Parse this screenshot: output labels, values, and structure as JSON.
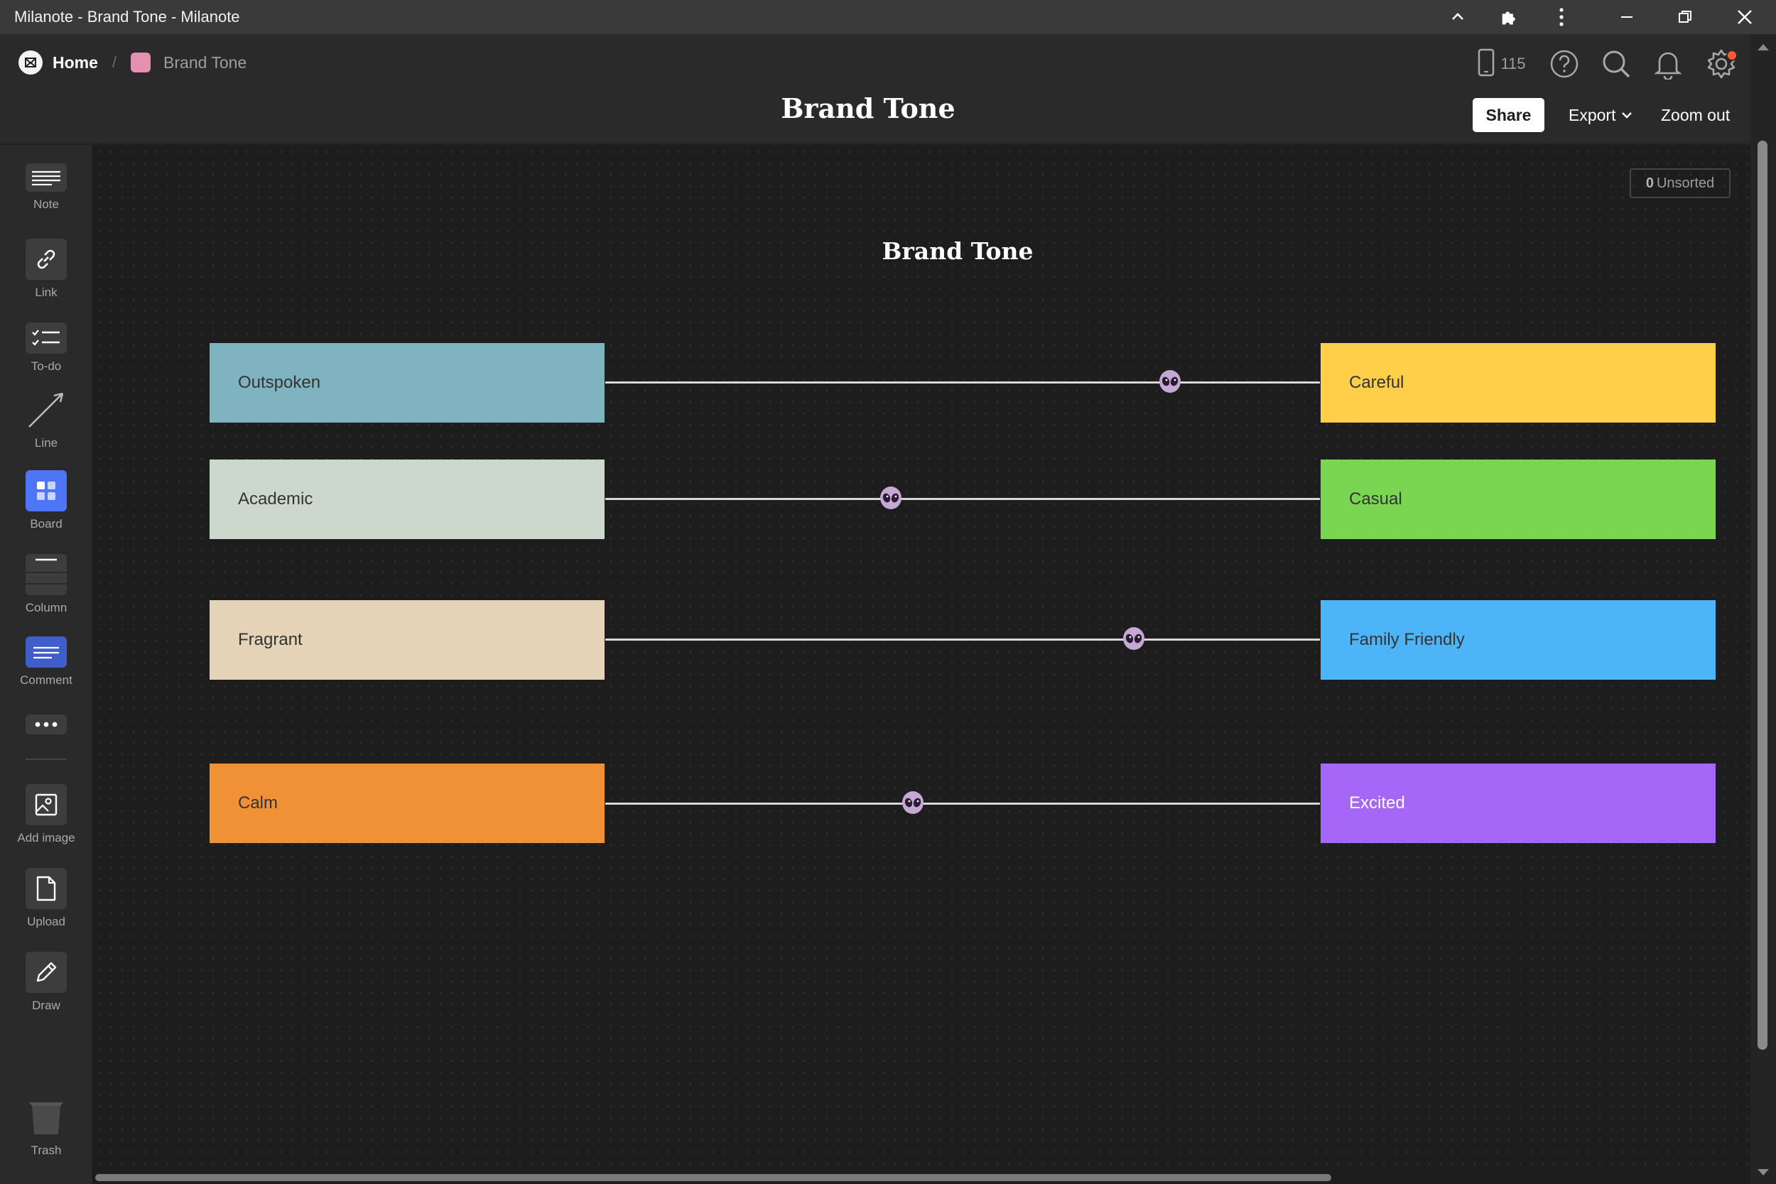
{
  "window": {
    "title": "Milanote - Brand Tone - Milanote"
  },
  "breadcrumb": {
    "home": "Home",
    "separator": "/",
    "current": "Brand Tone",
    "current_color": "#e58fb1"
  },
  "header": {
    "title": "Brand Tone",
    "device_count": "115",
    "share": "Share",
    "export": "Export",
    "zoom_out": "Zoom out",
    "icons": [
      "mobile-device-icon",
      "help-icon",
      "search-icon",
      "bell-icon",
      "gear-icon"
    ]
  },
  "toolbar": {
    "items": [
      {
        "label": "Note",
        "icon": "note-icon"
      },
      {
        "label": "Link",
        "icon": "link-icon"
      },
      {
        "label": "To-do",
        "icon": "todo-icon"
      },
      {
        "label": "Line",
        "icon": "line-icon"
      },
      {
        "label": "Board",
        "icon": "board-icon"
      },
      {
        "label": "Column",
        "icon": "column-icon"
      },
      {
        "label": "Comment",
        "icon": "comment-icon"
      },
      {
        "label": "",
        "icon": "more-icon"
      },
      {
        "label": "Add image",
        "icon": "image-icon"
      },
      {
        "label": "Upload",
        "icon": "upload-icon"
      },
      {
        "label": "Draw",
        "icon": "pencil-icon"
      },
      {
        "label": "Trash",
        "icon": "trash-icon"
      }
    ]
  },
  "canvas": {
    "unsorted_count": "0",
    "unsorted_label": "Unsorted",
    "title": "Brand Tone",
    "sliders": [
      {
        "left": "Outspoken",
        "left_color": "#7fb3bf",
        "left_text_color": "#333333",
        "right": "Careful",
        "right_color": "#ffcf4a",
        "right_text_color": "#333333",
        "position": 0.79
      },
      {
        "left": "Academic",
        "left_color": "#cdd8cc",
        "left_text_color": "#333333",
        "right": "Casual",
        "right_color": "#7ad552",
        "right_text_color": "#333333",
        "position": 0.4
      },
      {
        "left": "Fragrant",
        "left_color": "#e5d3b8",
        "left_text_color": "#333333",
        "right": "Family Friendly",
        "right_color": "#4db5f7",
        "right_text_color": "#333333",
        "position": 0.74
      },
      {
        "left": "Calm",
        "left_color": "#f09136",
        "left_text_color": "#333333",
        "right": "Excited",
        "right_color": "#a667f9",
        "right_text_color": "#ffffff",
        "position": 0.43
      }
    ],
    "marker_icon": "alien-icon"
  }
}
